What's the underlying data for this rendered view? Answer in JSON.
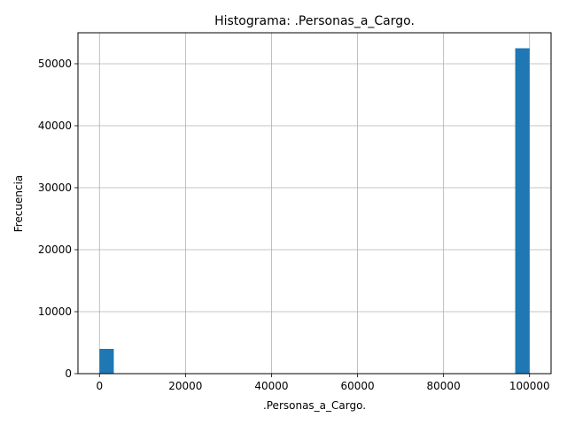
{
  "chart_data": {
    "type": "bar",
    "title": "Histograma: .Personas_a_Cargo.",
    "xlabel": ".Personas_a_Cargo.",
    "ylabel": "Frecuencia",
    "bar_color": "#1f77b4",
    "grid": true,
    "xlim": [
      -5000,
      105000
    ],
    "ylim": [
      0,
      55000
    ],
    "x_ticks": [
      0,
      20000,
      40000,
      60000,
      80000,
      100000
    ],
    "y_ticks": [
      0,
      10000,
      20000,
      30000,
      40000,
      50000
    ],
    "bins": [
      {
        "x0": 0,
        "x1": 3333,
        "count": 4000
      },
      {
        "x0": 96667,
        "x1": 100000,
        "count": 52500
      }
    ]
  }
}
